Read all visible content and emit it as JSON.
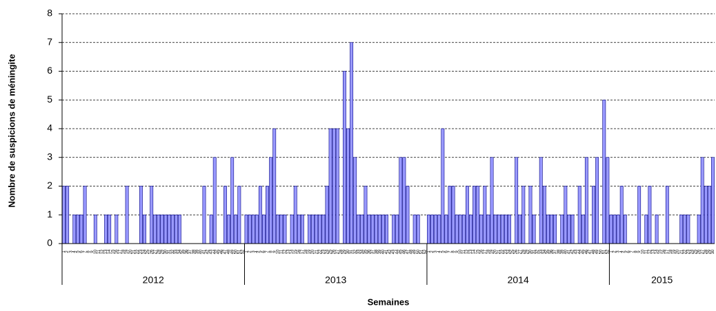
{
  "chart_data": {
    "type": "bar",
    "y_title": "Nombre de suspicions de méningite",
    "x_title": "Semaines",
    "color": "#9999ff",
    "edge_color": "#000080",
    "ylim": [
      0,
      8
    ],
    "yticks": [
      0,
      1,
      2,
      3,
      4,
      5,
      6,
      7,
      8
    ],
    "grid": true,
    "groups": [
      {
        "label": "2012",
        "categories": [
          "1",
          "2",
          "3",
          "4",
          "5",
          "6",
          "7",
          "8",
          "9",
          "10",
          "11",
          "12",
          "13",
          "14",
          "15",
          "16",
          "17",
          "18",
          "19",
          "20",
          "21",
          "22",
          "23",
          "24",
          "25",
          "26",
          "27",
          "28",
          "29",
          "30",
          "31",
          "32",
          "33",
          "34",
          "35",
          "36",
          "37",
          "38",
          "39",
          "40",
          "41",
          "42",
          "43",
          "44",
          "45",
          "46",
          "47",
          "48",
          "49",
          "50",
          "51",
          "52"
        ],
        "values": [
          2,
          2,
          0,
          1,
          1,
          1,
          2,
          0,
          0,
          1,
          0,
          0,
          1,
          1,
          0,
          1,
          0,
          0,
          2,
          0,
          0,
          0,
          2,
          1,
          0,
          2,
          1,
          1,
          1,
          1,
          1,
          1,
          1,
          1,
          0,
          0,
          0,
          0,
          0,
          0,
          2,
          0,
          1,
          3,
          0,
          0,
          2,
          1,
          3,
          1,
          2,
          0
        ]
      },
      {
        "label": "2013",
        "categories": [
          "1",
          "2",
          "3",
          "4",
          "5",
          "6",
          "7",
          "8",
          "9",
          "10",
          "11",
          "12",
          "13",
          "14",
          "15",
          "16",
          "17",
          "18",
          "19",
          "20",
          "21",
          "22",
          "23",
          "24",
          "25",
          "26",
          "27",
          "28",
          "29",
          "30",
          "31",
          "32",
          "33",
          "34",
          "35",
          "36",
          "37",
          "38",
          "39",
          "40",
          "41",
          "42",
          "43",
          "44",
          "45",
          "46",
          "47",
          "48",
          "49",
          "50",
          "51",
          "52"
        ],
        "values": [
          1,
          1,
          1,
          1,
          2,
          1,
          2,
          3,
          4,
          1,
          1,
          1,
          0,
          1,
          2,
          1,
          1,
          0,
          1,
          1,
          1,
          1,
          1,
          2,
          4,
          4,
          4,
          0,
          6,
          4,
          7,
          3,
          1,
          1,
          2,
          1,
          1,
          1,
          1,
          1,
          1,
          0,
          1,
          1,
          3,
          3,
          2,
          0,
          1,
          1,
          0,
          0
        ]
      },
      {
        "label": "2014",
        "categories": [
          "1",
          "2",
          "3",
          "4",
          "5",
          "6",
          "7",
          "8",
          "9",
          "10",
          "11",
          "12",
          "13",
          "14",
          "15",
          "16",
          "17",
          "18",
          "19",
          "20",
          "21",
          "22",
          "23",
          "24",
          "25",
          "26",
          "27",
          "28",
          "29",
          "30",
          "31",
          "32",
          "33",
          "34",
          "35",
          "36",
          "37",
          "38",
          "39",
          "40",
          "41",
          "42",
          "43",
          "44",
          "45",
          "46",
          "47",
          "48",
          "49",
          "50",
          "51",
          "52"
        ],
        "values": [
          1,
          1,
          1,
          1,
          4,
          1,
          2,
          2,
          1,
          1,
          1,
          2,
          1,
          2,
          2,
          1,
          2,
          1,
          3,
          1,
          1,
          1,
          1,
          1,
          0,
          3,
          1,
          2,
          0,
          2,
          1,
          0,
          3,
          2,
          1,
          1,
          1,
          0,
          1,
          2,
          1,
          1,
          0,
          2,
          1,
          3,
          0,
          2,
          3,
          0,
          5,
          3
        ]
      },
      {
        "label": "2015",
        "categories": [
          "1",
          "2",
          "3",
          "4",
          "5",
          "6",
          "7",
          "8",
          "9",
          "10",
          "11",
          "12",
          "13",
          "14",
          "15",
          "16",
          "17",
          "18",
          "19",
          "20",
          "21",
          "22",
          "23",
          "24",
          "25",
          "26",
          "27",
          "28",
          "29",
          "30"
        ],
        "values": [
          1,
          1,
          1,
          2,
          1,
          0,
          0,
          0,
          2,
          0,
          1,
          2,
          0,
          1,
          0,
          0,
          2,
          0,
          0,
          0,
          1,
          1,
          1,
          0,
          0,
          1,
          3,
          2,
          2,
          3
        ]
      }
    ]
  }
}
